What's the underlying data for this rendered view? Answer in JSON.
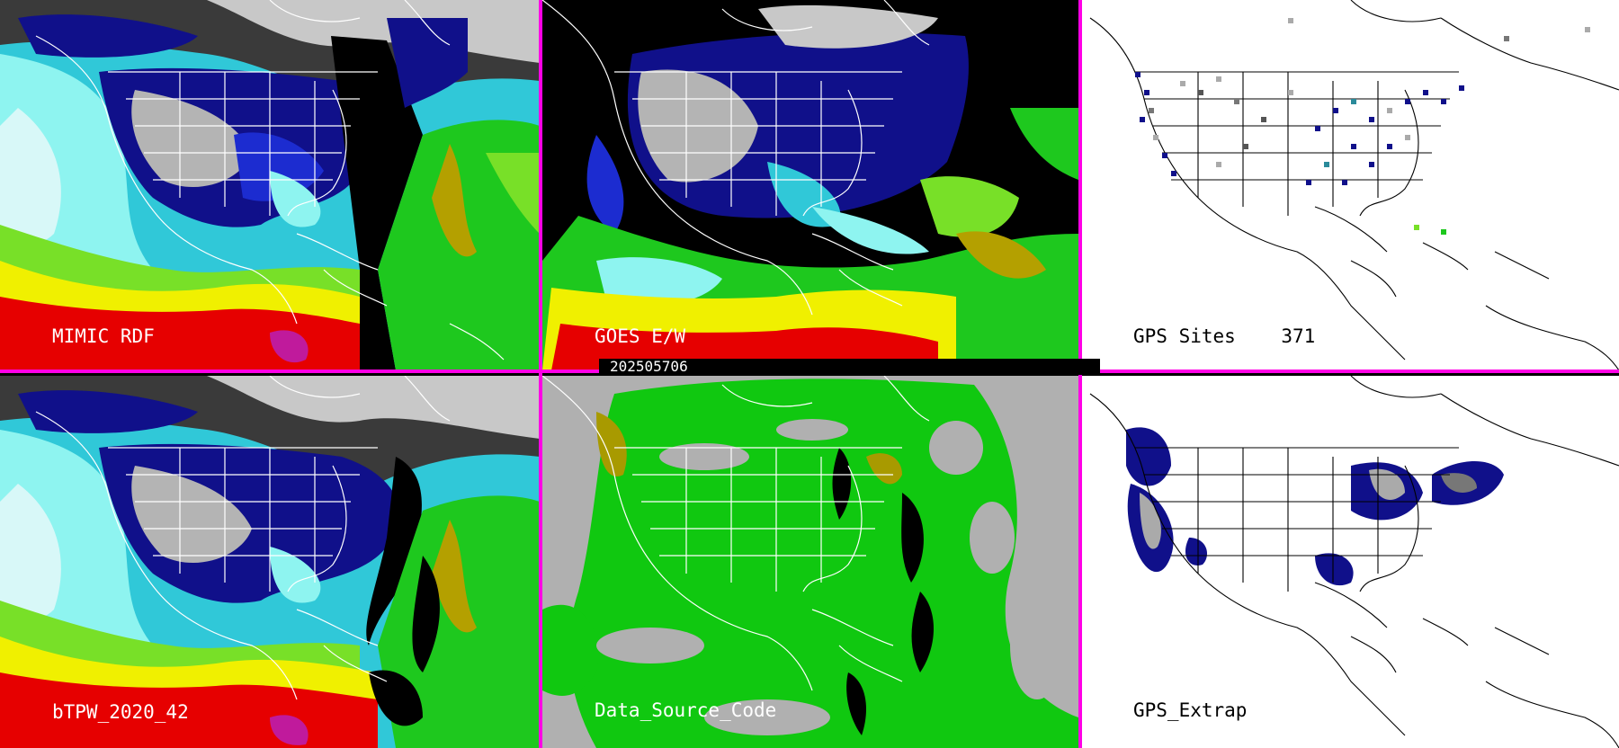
{
  "panels": {
    "mimic": {
      "label": "MIMIC RDF"
    },
    "goes": {
      "label": "GOES E/W"
    },
    "gps_sites": {
      "label": "GPS Sites",
      "count": "371"
    },
    "btpw": {
      "label": "bTPW_2020_42"
    },
    "dsc": {
      "label": "Data_Source_Code"
    },
    "gps_extrap": {
      "label": "GPS_Extrap"
    }
  },
  "timestamp": "202505706",
  "colors": {
    "separator": "#ff00e6",
    "tpw_scale": [
      "#000000",
      "#7a7a7a",
      "#c8c8c8",
      "#10108a",
      "#1c2cd0",
      "#30c8d8",
      "#8ef4f0",
      "#1ec81e",
      "#78e028",
      "#b4a000",
      "#f0f000",
      "#e60000",
      "#c01a9c"
    ],
    "dsc_green": "#10c810",
    "dsc_gray": "#b0b0b0",
    "dsc_olive": "#a89a00"
  }
}
